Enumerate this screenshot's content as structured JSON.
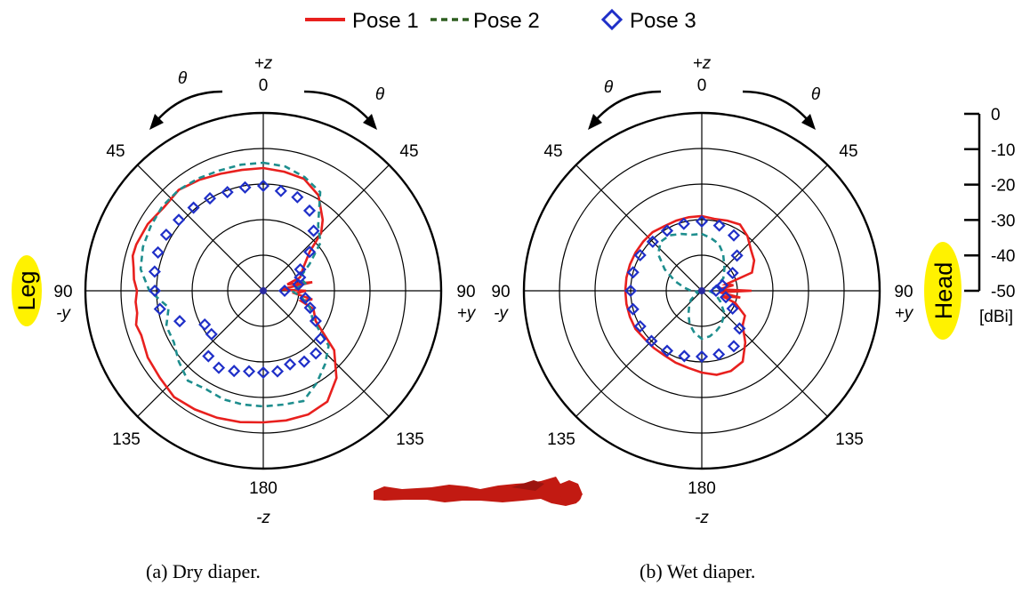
{
  "legend": [
    {
      "label": "Pose 1",
      "color": "#e8201e",
      "style": "solid"
    },
    {
      "label": "Pose 2",
      "color": "#1e8e8e",
      "style": "dashed",
      "legend_color": "#2e5e20"
    },
    {
      "label": "Pose 3",
      "color": "#1f2fc8",
      "style": "diamond"
    }
  ],
  "badges": {
    "left": "Leg",
    "right": "Head",
    "color": "#fff200"
  },
  "dbi_scale": {
    "ticks": [
      "0",
      "-10",
      "-20",
      "-30",
      "-40",
      "-50"
    ],
    "unit": "[dBi]"
  },
  "axis_labels": {
    "top_axis": "+z",
    "top_angle": "0",
    "bottom_angle": "180",
    "bottom_axis": "-z",
    "diag": "45",
    "diag_bottom": "135",
    "side_angle": "90",
    "left_axis": "-y",
    "right_axis": "+y",
    "theta": "θ"
  },
  "chart_data": [
    {
      "type": "polar",
      "caption": "(a)  Dry diaper.",
      "theta_unit": "degrees",
      "r_unit": "dBi",
      "rlim": [
        -50,
        0
      ],
      "grid": true,
      "series": [
        {
          "name": "Pose 1",
          "theta": [
            0,
            10,
            20,
            30,
            40,
            45,
            50,
            60,
            70,
            75,
            80,
            85,
            90,
            95,
            100,
            105,
            110,
            120,
            130,
            140,
            150,
            160,
            170,
            180,
            190,
            200,
            210,
            220,
            230,
            240,
            250,
            255,
            260,
            265,
            270,
            275,
            280,
            285,
            290,
            300,
            310,
            320,
            330,
            340,
            350
          ],
          "r": [
            -15.5,
            -16,
            -16.5,
            -19,
            -24,
            -27,
            -33,
            -37,
            -39,
            -43,
            -36,
            -45,
            -38,
            -41,
            -36,
            -39,
            -35,
            -33,
            -24,
            -18,
            -14,
            -13,
            -13,
            -13,
            -12.5,
            -12,
            -11.5,
            -11,
            -12,
            -12.5,
            -13.5,
            -13,
            -14,
            -14,
            -14.5,
            -13.5,
            -13,
            -12,
            -12,
            -12.5,
            -13.5,
            -13,
            -14,
            -15,
            -15.5
          ]
        },
        {
          "name": "Pose 2",
          "theta": [
            0,
            10,
            20,
            30,
            40,
            50,
            60,
            70,
            80,
            90,
            100,
            110,
            120,
            130,
            140,
            150,
            160,
            170,
            180,
            190,
            200,
            210,
            220,
            230,
            240,
            250,
            260,
            270,
            280,
            290,
            300,
            310,
            320,
            330,
            340,
            350
          ],
          "r": [
            -14,
            -14.5,
            -16,
            -18,
            -26,
            -29,
            -35,
            -39,
            -38,
            -42,
            -39,
            -36,
            -34,
            -26,
            -23,
            -20,
            -17,
            -17.5,
            -17.5,
            -17.5,
            -17.5,
            -18,
            -17,
            -19,
            -21,
            -21,
            -23,
            -18,
            -15,
            -14,
            -13.5,
            -13,
            -13,
            -13.5,
            -14,
            -14
          ]
        },
        {
          "name": "Pose 3",
          "theta": [
            0,
            10,
            20,
            30,
            40,
            50,
            60,
            70,
            80,
            90,
            100,
            110,
            120,
            130,
            140,
            150,
            160,
            170,
            180,
            190,
            200,
            210,
            220,
            230,
            240,
            250,
            260,
            270,
            280,
            290,
            300,
            310,
            320,
            330,
            340,
            350
          ],
          "r": [
            -20.5,
            -21.5,
            -22,
            -24,
            -28,
            -33,
            -38,
            -39,
            -40,
            -44,
            -38,
            -36,
            -33,
            -29,
            -27,
            -27,
            -28,
            -27,
            -27,
            -27,
            -26,
            -25,
            -26,
            -31,
            -31,
            -25,
            -20.5,
            -19.5,
            -19,
            -18.5,
            -18.5,
            -19,
            -19.5,
            -20,
            -20.5,
            -20.5
          ]
        }
      ]
    },
    {
      "type": "polar",
      "caption": "(b) Wet diaper.",
      "theta_unit": "degrees",
      "r_unit": "dBi",
      "rlim": [
        -50,
        0
      ],
      "grid": true,
      "series": [
        {
          "name": "Pose 1",
          "theta": [
            0,
            10,
            20,
            30,
            40,
            50,
            60,
            70,
            75,
            80,
            85,
            90,
            95,
            100,
            105,
            110,
            120,
            130,
            140,
            150,
            160,
            170,
            180,
            190,
            200,
            210,
            220,
            230,
            240,
            250,
            260,
            270,
            280,
            290,
            300,
            310,
            320,
            330,
            340,
            350
          ],
          "r": [
            -29,
            -29.5,
            -29,
            -28.5,
            -30,
            -32,
            -33,
            -35,
            -43,
            -41,
            -45,
            -36,
            -45,
            -39,
            -44,
            -40,
            -36,
            -35,
            -31,
            -27,
            -26,
            -26,
            -27,
            -28,
            -28.5,
            -29,
            -29,
            -29,
            -28.5,
            -28.5,
            -28.5,
            -28.5,
            -28.5,
            -28.5,
            -28.5,
            -28.5,
            -28.5,
            -29,
            -29,
            -29
          ]
        },
        {
          "name": "Pose 2",
          "theta": [
            0,
            10,
            20,
            30,
            45,
            60,
            75,
            90,
            105,
            120,
            135,
            150,
            160,
            170,
            180,
            190,
            200,
            210,
            220,
            230,
            240,
            250,
            260,
            270,
            280,
            290,
            300,
            310,
            320,
            330,
            340,
            350
          ],
          "r": [
            -34,
            -35,
            -36,
            -38,
            -41,
            -43,
            -46,
            -48,
            -46,
            -44,
            -41,
            -39,
            -38,
            -37,
            -36.5,
            -38,
            -40,
            -42.5,
            -44.5,
            -46,
            -48,
            -49,
            -48.5,
            -47,
            -45,
            -42,
            -38,
            -34,
            -32,
            -32,
            -33,
            -34
          ]
        },
        {
          "name": "Pose 3",
          "theta": [
            0,
            15,
            30,
            45,
            60,
            75,
            90,
            105,
            120,
            135,
            150,
            165,
            180,
            195,
            210,
            225,
            240,
            255,
            270,
            285,
            300,
            315,
            330,
            345
          ],
          "r": [
            -30.5,
            -31,
            -32,
            -36,
            -40,
            -44,
            -46,
            -43,
            -40,
            -35,
            -32,
            -31.5,
            -31.5,
            -31,
            -30.5,
            -30,
            -30,
            -30,
            -30,
            -30,
            -30,
            -30.5,
            -30.5,
            -30.5
          ]
        }
      ]
    }
  ]
}
